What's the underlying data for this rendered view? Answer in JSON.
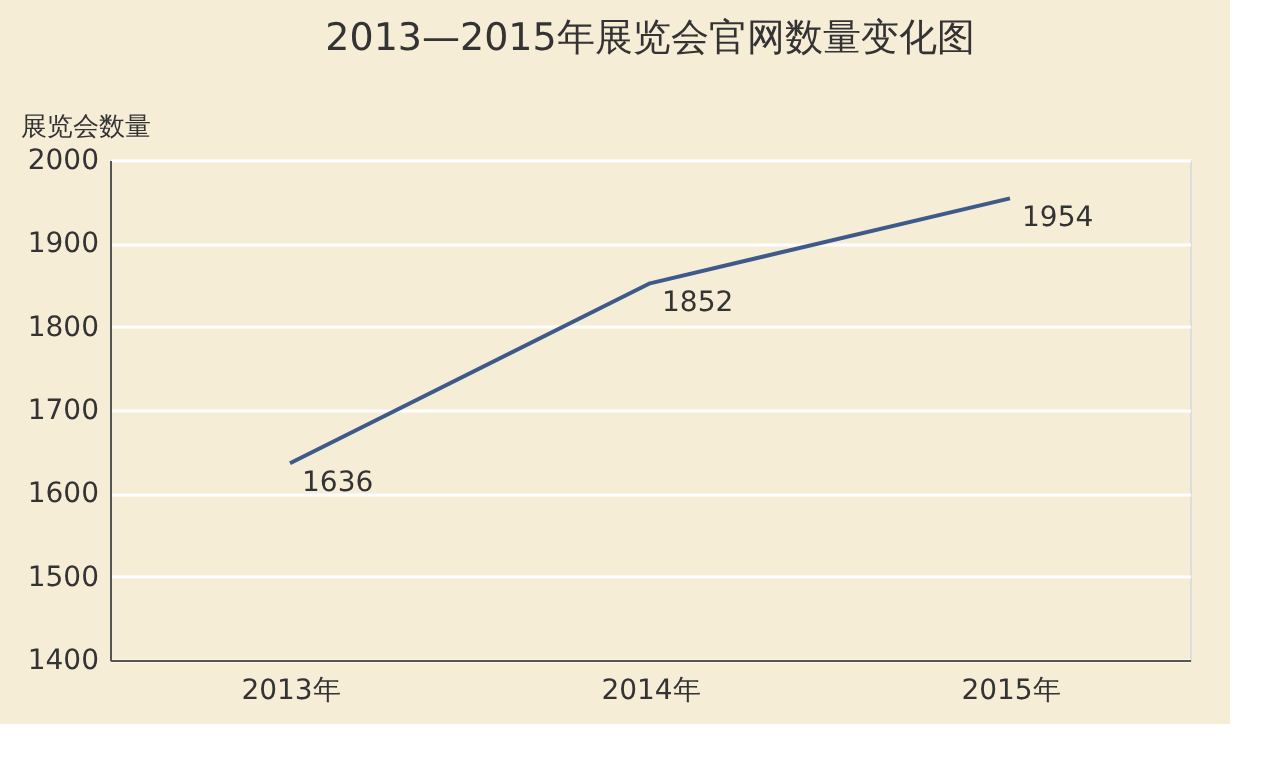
{
  "chart_data": {
    "type": "line",
    "title": "2013—2015年展览会官网数量变化图",
    "ylabel": "展览会数量",
    "categories": [
      "2013年",
      "2014年",
      "2015年"
    ],
    "series": [
      {
        "color": "#3d5a8a",
        "values": [
          1636,
          1852,
          1954
        ]
      }
    ],
    "ylim": [
      1400,
      2000
    ],
    "yticks": [
      1400,
      1500,
      1600,
      1700,
      1800,
      1900,
      2000
    ],
    "grid": "y",
    "data_labels": true,
    "legend": false,
    "marker": "none",
    "line_style": "solid"
  }
}
